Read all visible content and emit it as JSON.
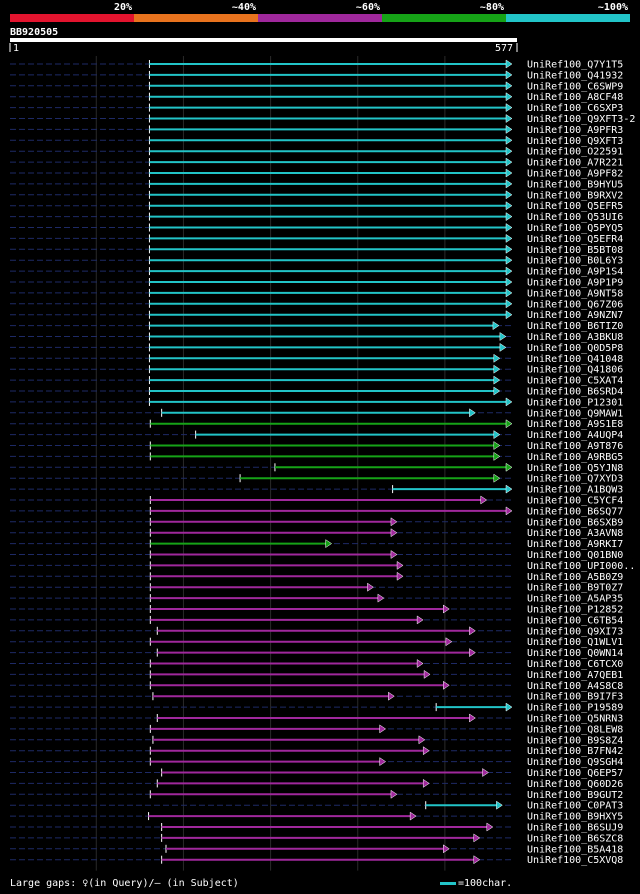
{
  "chart_data": {
    "type": "alignment-overview",
    "query_id": "BB920505",
    "query_start": "1",
    "query_end": "577",
    "query_length": 577,
    "legend": [
      {
        "label": "20%",
        "color": "#e3142e"
      },
      {
        "label": "~40%",
        "color": "#e8731e"
      },
      {
        "label": "~60%",
        "color": "#a0289c"
      },
      {
        "label": "~80%",
        "color": "#16a317"
      },
      {
        "label": "~100%",
        "color": "#22c4c8"
      }
    ],
    "colors": {
      "cyan": "#22c4c8",
      "green": "#16a317",
      "purple": "#a0289c",
      "dashed_background": "#1e2a66",
      "gridline": "#2a2a2a"
    },
    "hits": [
      {
        "name": "UniRef100_Q7Y1T5",
        "start": 161,
        "end": 577,
        "color": "cyan"
      },
      {
        "name": "UniRef100_Q41932",
        "start": 161,
        "end": 577,
        "color": "cyan"
      },
      {
        "name": "UniRef100_C6SWP9",
        "start": 161,
        "end": 577,
        "color": "cyan"
      },
      {
        "name": "UniRef100_A8CF48",
        "start": 161,
        "end": 577,
        "color": "cyan"
      },
      {
        "name": "UniRef100_C6SXP3",
        "start": 161,
        "end": 577,
        "color": "cyan"
      },
      {
        "name": "UniRef100_Q9XFT3-2",
        "start": 161,
        "end": 577,
        "color": "cyan"
      },
      {
        "name": "UniRef100_A9PFR3",
        "start": 161,
        "end": 577,
        "color": "cyan"
      },
      {
        "name": "UniRef100_Q9XFT3",
        "start": 161,
        "end": 577,
        "color": "cyan"
      },
      {
        "name": "UniRef100_O22591",
        "start": 161,
        "end": 577,
        "color": "cyan"
      },
      {
        "name": "UniRef100_A7R221",
        "start": 161,
        "end": 577,
        "color": "cyan"
      },
      {
        "name": "UniRef100_A9PF82",
        "start": 161,
        "end": 577,
        "color": "cyan"
      },
      {
        "name": "UniRef100_B9HYU5",
        "start": 161,
        "end": 577,
        "color": "cyan"
      },
      {
        "name": "UniRef100_B9RXV2",
        "start": 161,
        "end": 577,
        "color": "cyan"
      },
      {
        "name": "UniRef100_Q5EFR5",
        "start": 161,
        "end": 577,
        "color": "cyan"
      },
      {
        "name": "UniRef100_Q53UI6",
        "start": 161,
        "end": 577,
        "color": "cyan"
      },
      {
        "name": "UniRef100_Q5PYQ5",
        "start": 161,
        "end": 577,
        "color": "cyan"
      },
      {
        "name": "UniRef100_Q5EFR4",
        "start": 161,
        "end": 577,
        "color": "cyan"
      },
      {
        "name": "UniRef100_B5BT08",
        "start": 161,
        "end": 577,
        "color": "cyan"
      },
      {
        "name": "UniRef100_B0L6Y3",
        "start": 161,
        "end": 577,
        "color": "cyan"
      },
      {
        "name": "UniRef100_A9P1S4",
        "start": 161,
        "end": 577,
        "color": "cyan"
      },
      {
        "name": "UniRef100_A9P1P9",
        "start": 161,
        "end": 577,
        "color": "cyan"
      },
      {
        "name": "UniRef100_A9NT58",
        "start": 161,
        "end": 577,
        "color": "cyan"
      },
      {
        "name": "UniRef100_Q67Z06",
        "start": 161,
        "end": 577,
        "color": "cyan"
      },
      {
        "name": "UniRef100_A9NZN7",
        "start": 161,
        "end": 577,
        "color": "cyan"
      },
      {
        "name": "UniRef100_B6TIZ0",
        "start": 161,
        "end": 562,
        "color": "cyan"
      },
      {
        "name": "UniRef100_A3BKU8",
        "start": 161,
        "end": 570,
        "color": "cyan"
      },
      {
        "name": "UniRef100_Q0D5P8",
        "start": 161,
        "end": 570,
        "color": "cyan"
      },
      {
        "name": "UniRef100_Q41048",
        "start": 161,
        "end": 563,
        "color": "cyan"
      },
      {
        "name": "UniRef100_Q41806",
        "start": 161,
        "end": 563,
        "color": "cyan"
      },
      {
        "name": "UniRef100_C5XAT4",
        "start": 161,
        "end": 563,
        "color": "cyan"
      },
      {
        "name": "UniRef100_B6SRD4",
        "start": 161,
        "end": 563,
        "color": "cyan"
      },
      {
        "name": "UniRef100_P12301",
        "start": 161,
        "end": 577,
        "color": "cyan"
      },
      {
        "name": "UniRef100_Q9MAW1",
        "start": 175,
        "end": 535,
        "color": "cyan"
      },
      {
        "name": "UniRef100_A9S1E8",
        "start": 162,
        "end": 577,
        "color": "green"
      },
      {
        "name": "UniRef100_A4UQP4",
        "start": 214,
        "end": 563,
        "color": "cyan"
      },
      {
        "name": "UniRef100_A9T876",
        "start": 162,
        "end": 563,
        "color": "green"
      },
      {
        "name": "UniRef100_A9RBG5",
        "start": 162,
        "end": 563,
        "color": "green"
      },
      {
        "name": "UniRef100_Q5YJN8",
        "start": 305,
        "end": 577,
        "color": "green"
      },
      {
        "name": "UniRef100_Q7XYD3",
        "start": 265,
        "end": 563,
        "color": "green"
      },
      {
        "name": "UniRef100_A1BQW3",
        "start": 440,
        "end": 577,
        "color": "cyan"
      },
      {
        "name": "UniRef100_C5YCF4",
        "start": 162,
        "end": 548,
        "color": "purple"
      },
      {
        "name": "UniRef100_B6SQ77",
        "start": 162,
        "end": 577,
        "color": "purple"
      },
      {
        "name": "UniRef100_B6SXB9",
        "start": 162,
        "end": 445,
        "color": "purple"
      },
      {
        "name": "UniRef100_A3AVN8",
        "start": 162,
        "end": 445,
        "color": "purple"
      },
      {
        "name": "UniRef100_A9RKI7",
        "start": 162,
        "end": 370,
        "color": "green"
      },
      {
        "name": "UniRef100_Q01BN0",
        "start": 162,
        "end": 445,
        "color": "purple"
      },
      {
        "name": "UniRef100_UPI000..",
        "start": 162,
        "end": 452,
        "color": "purple"
      },
      {
        "name": "UniRef100_A5B0Z9",
        "start": 162,
        "end": 452,
        "color": "purple"
      },
      {
        "name": "UniRef100_B9T0Z7",
        "start": 162,
        "end": 418,
        "color": "purple"
      },
      {
        "name": "UniRef100_A5AP35",
        "start": 162,
        "end": 430,
        "color": "purple"
      },
      {
        "name": "UniRef100_P12852",
        "start": 162,
        "end": 505,
        "color": "purple"
      },
      {
        "name": "UniRef100_C6TB54",
        "start": 162,
        "end": 475,
        "color": "purple"
      },
      {
        "name": "UniRef100_Q9XI73",
        "start": 170,
        "end": 535,
        "color": "purple"
      },
      {
        "name": "UniRef100_Q1WLV1",
        "start": 162,
        "end": 508,
        "color": "purple"
      },
      {
        "name": "UniRef100_Q0WN14",
        "start": 170,
        "end": 535,
        "color": "purple"
      },
      {
        "name": "UniRef100_C6TCX0",
        "start": 162,
        "end": 475,
        "color": "purple"
      },
      {
        "name": "UniRef100_A7QEB1",
        "start": 162,
        "end": 483,
        "color": "purple"
      },
      {
        "name": "UniRef100_A4S8C8",
        "start": 162,
        "end": 505,
        "color": "purple"
      },
      {
        "name": "UniRef100_B9I7F3",
        "start": 165,
        "end": 442,
        "color": "purple"
      },
      {
        "name": "UniRef100_P19589",
        "start": 490,
        "end": 577,
        "color": "cyan"
      },
      {
        "name": "UniRef100_Q5NRN3",
        "start": 170,
        "end": 535,
        "color": "purple"
      },
      {
        "name": "UniRef100_Q8LEW8",
        "start": 162,
        "end": 432,
        "color": "purple"
      },
      {
        "name": "UniRef100_B9S8Z4",
        "start": 165,
        "end": 477,
        "color": "purple"
      },
      {
        "name": "UniRef100_B7FN42",
        "start": 162,
        "end": 482,
        "color": "purple"
      },
      {
        "name": "UniRef100_Q9SGH4",
        "start": 162,
        "end": 432,
        "color": "purple"
      },
      {
        "name": "UniRef100_Q6EP57",
        "start": 175,
        "end": 550,
        "color": "purple"
      },
      {
        "name": "UniRef100_Q60D26",
        "start": 170,
        "end": 482,
        "color": "purple"
      },
      {
        "name": "UniRef100_B9GUT2",
        "start": 162,
        "end": 445,
        "color": "purple"
      },
      {
        "name": "UniRef100_C0PAT3",
        "start": 478,
        "end": 566,
        "color": "cyan"
      },
      {
        "name": "UniRef100_B9HXY5",
        "start": 160,
        "end": 467,
        "color": "purple"
      },
      {
        "name": "UniRef100_B6SUJ9",
        "start": 175,
        "end": 555,
        "color": "purple"
      },
      {
        "name": "UniRef100_B6SZC8",
        "start": 175,
        "end": 540,
        "color": "purple"
      },
      {
        "name": "UniRef100_B5A418",
        "start": 180,
        "end": 505,
        "color": "purple"
      },
      {
        "name": "UniRef100_C5XVQ8",
        "start": 175,
        "end": 540,
        "color": "purple"
      }
    ]
  },
  "footer": {
    "gaps_label": "Large gaps: ♀(in Query)/— (in Subject)",
    "scale_label": "=100char."
  }
}
